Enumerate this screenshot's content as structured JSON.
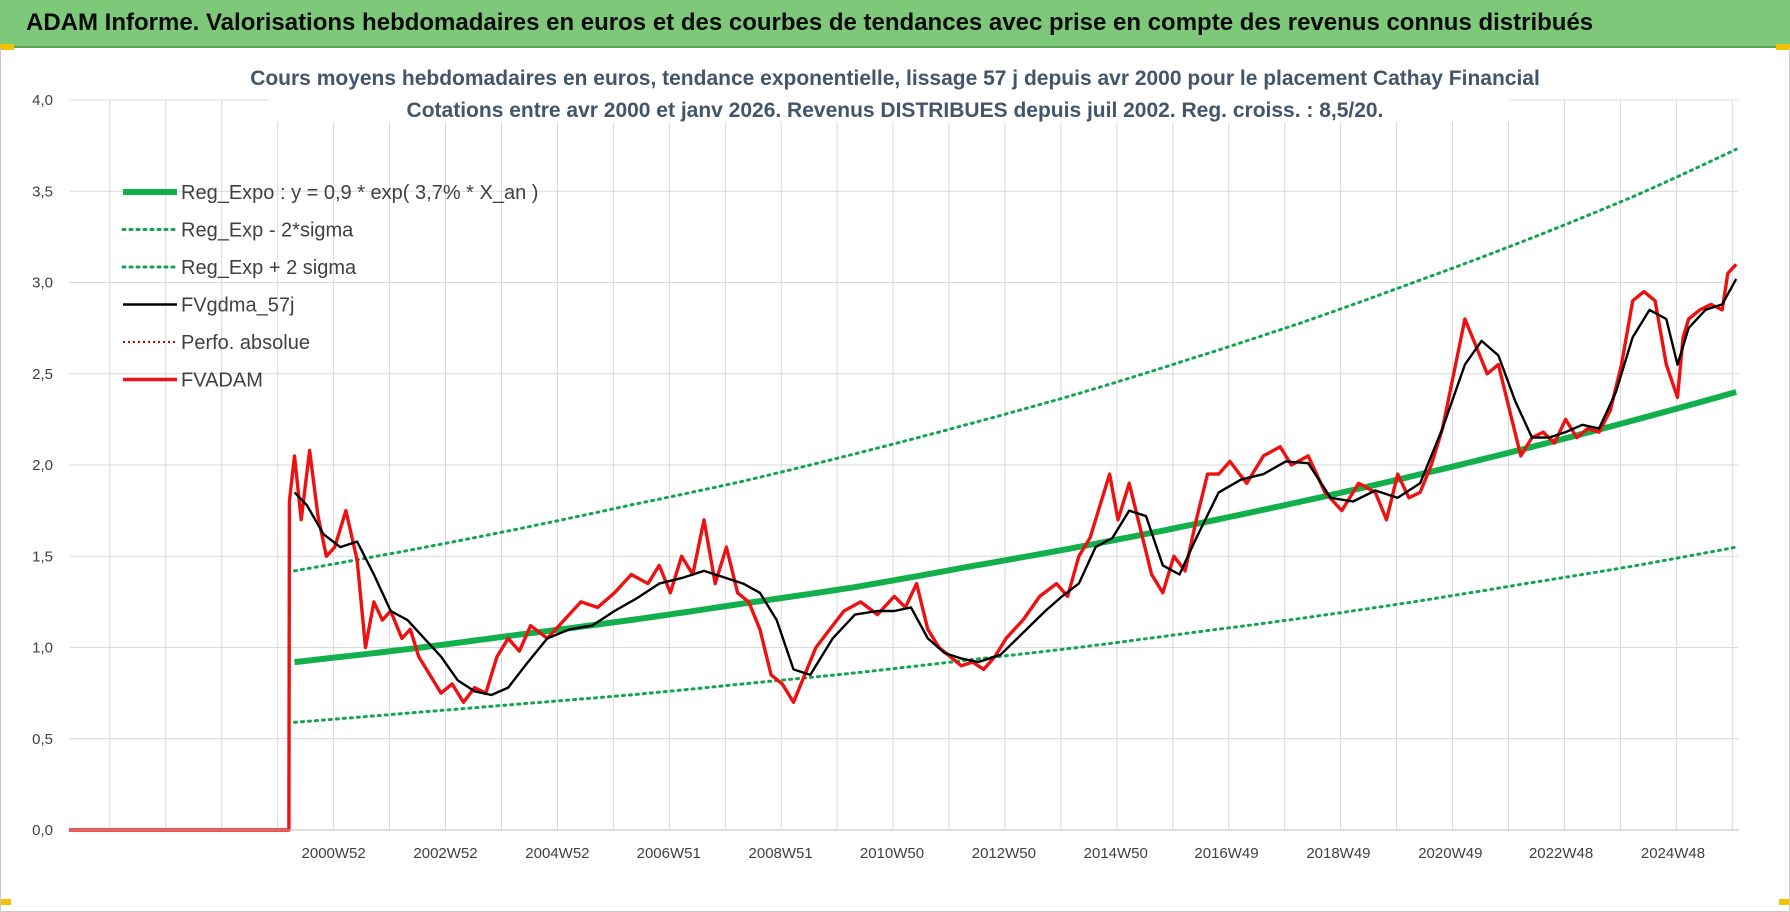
{
  "banner": {
    "title": "ADAM Informe. Valorisations hebdomadaires en euros et des courbes de tendances avec prise en compte des revenus connus distribués"
  },
  "colors": {
    "banner_bg": "#7ec87a",
    "trend_green": "#12b04c",
    "band_green": "#12a550",
    "smoothed_black": "#000000",
    "price_red": "#ee1111",
    "perf_red": "#cc0000",
    "grid": "#d9d9d9"
  },
  "chart_data": {
    "type": "line",
    "title": [
      "Cours moyens hebdomadaires en euros, tendance exponentielle, lissage 57 j depuis avr 2000 pour le placement Cathay Financial",
      "Cotations entre avr 2000 et janv 2026.  Revenus DISTRIBUES depuis juil 2002.  Reg. croiss. : 8,5/20."
    ],
    "xlabel": "",
    "ylabel": "",
    "ylim": [
      0,
      4
    ],
    "y_ticks": [
      "0,0",
      "0,5",
      "1,0",
      "1,5",
      "2,0",
      "2,5",
      "3,0",
      "3,5",
      "4,0"
    ],
    "x_range": [
      1996.25,
      2026.1
    ],
    "x_tick_labels": [
      {
        "x": 2000.98,
        "label": "2000W52"
      },
      {
        "x": 2002.98,
        "label": "2002W52"
      },
      {
        "x": 2004.98,
        "label": "2004W52"
      },
      {
        "x": 2006.97,
        "label": "2006W51"
      },
      {
        "x": 2008.97,
        "label": "2008W51"
      },
      {
        "x": 2010.96,
        "label": "2010W50"
      },
      {
        "x": 2012.96,
        "label": "2012W50"
      },
      {
        "x": 2014.96,
        "label": "2014W50"
      },
      {
        "x": 2016.94,
        "label": "2016W49"
      },
      {
        "x": 2018.94,
        "label": "2018W49"
      },
      {
        "x": 2020.94,
        "label": "2020W49"
      },
      {
        "x": 2022.92,
        "label": "2022W48"
      },
      {
        "x": 2024.92,
        "label": "2024W48"
      }
    ],
    "grid": true,
    "legend_position": "top-left",
    "series": [
      {
        "name": "Reg_Expo : y = 0,9 * exp( 3,7% *  X_an )",
        "style": "solid-thick-green",
        "x": [
          2000.28,
          2002.28,
          2004.28,
          2006.28,
          2008.28,
          2010.28,
          2012.28,
          2014.28,
          2016.28,
          2018.28,
          2020.28,
          2022.28,
          2024.28,
          2026.05
        ],
        "y": [
          0.92,
          0.99,
          1.07,
          1.15,
          1.24,
          1.33,
          1.44,
          1.55,
          1.67,
          1.8,
          1.94,
          2.09,
          2.25,
          2.4
        ]
      },
      {
        "name": "Reg_Exp - 2*sigma",
        "style": "dotted-green",
        "x": [
          2000.28,
          2002.28,
          2004.28,
          2006.28,
          2008.28,
          2010.28,
          2012.28,
          2014.28,
          2016.28,
          2018.28,
          2020.28,
          2022.28,
          2024.28,
          2026.05
        ],
        "y": [
          0.59,
          0.64,
          0.69,
          0.74,
          0.8,
          0.86,
          0.93,
          1.0,
          1.08,
          1.16,
          1.25,
          1.35,
          1.45,
          1.55
        ]
      },
      {
        "name": "Reg_Exp + 2 sigma",
        "style": "dotted-green",
        "x": [
          2000.28,
          2002.28,
          2004.28,
          2006.28,
          2008.28,
          2010.28,
          2012.28,
          2014.28,
          2016.28,
          2018.28,
          2020.28,
          2022.28,
          2024.28,
          2026.05
        ],
        "y": [
          1.42,
          1.53,
          1.65,
          1.78,
          1.91,
          2.06,
          2.22,
          2.39,
          2.58,
          2.78,
          3.0,
          3.23,
          3.48,
          3.73
        ]
      },
      {
        "name": "FVgdma_57j",
        "style": "solid-black",
        "x": [
          2000.28,
          2000.5,
          2000.8,
          2001.1,
          2001.4,
          2001.7,
          2002.0,
          2002.3,
          2002.6,
          2002.9,
          2003.2,
          2003.5,
          2003.8,
          2004.1,
          2004.4,
          2004.8,
          2005.2,
          2005.6,
          2006.0,
          2006.4,
          2006.8,
          2007.2,
          2007.6,
          2008.0,
          2008.3,
          2008.6,
          2008.9,
          2009.2,
          2009.5,
          2009.9,
          2010.3,
          2010.7,
          2011.0,
          2011.3,
          2011.6,
          2011.9,
          2012.2,
          2012.5,
          2012.9,
          2013.3,
          2013.7,
          2014.0,
          2014.3,
          2014.6,
          2014.9,
          2015.2,
          2015.5,
          2015.8,
          2016.1,
          2016.4,
          2016.8,
          2017.2,
          2017.6,
          2018.0,
          2018.4,
          2018.8,
          2019.2,
          2019.6,
          2020.0,
          2020.4,
          2020.8,
          2021.2,
          2021.5,
          2021.8,
          2022.1,
          2022.4,
          2022.7,
          2023.0,
          2023.3,
          2023.6,
          2023.9,
          2024.2,
          2024.5,
          2024.8,
          2025.0,
          2025.2,
          2025.5,
          2025.8,
          2026.05
        ],
        "y": [
          1.85,
          1.78,
          1.62,
          1.55,
          1.58,
          1.4,
          1.2,
          1.15,
          1.05,
          0.95,
          0.82,
          0.76,
          0.74,
          0.78,
          0.9,
          1.05,
          1.1,
          1.12,
          1.2,
          1.27,
          1.35,
          1.38,
          1.42,
          1.38,
          1.35,
          1.3,
          1.15,
          0.88,
          0.85,
          1.05,
          1.18,
          1.2,
          1.2,
          1.22,
          1.05,
          0.97,
          0.94,
          0.92,
          0.96,
          1.08,
          1.2,
          1.28,
          1.35,
          1.55,
          1.6,
          1.75,
          1.72,
          1.45,
          1.4,
          1.6,
          1.85,
          1.92,
          1.95,
          2.02,
          2.01,
          1.82,
          1.8,
          1.86,
          1.82,
          1.9,
          2.2,
          2.55,
          2.68,
          2.6,
          2.35,
          2.15,
          2.15,
          2.18,
          2.22,
          2.2,
          2.4,
          2.7,
          2.85,
          2.8,
          2.55,
          2.75,
          2.85,
          2.88,
          3.02
        ]
      },
      {
        "name": "Perfo. absolue",
        "style": "dotted-red",
        "x": [],
        "y": []
      },
      {
        "name": "FVADAM",
        "style": "solid-thick-red",
        "x": [
          1996.25,
          2000.18,
          2000.19,
          2000.28,
          2000.4,
          2000.55,
          2000.7,
          2000.85,
          2001.0,
          2001.2,
          2001.4,
          2001.55,
          2001.7,
          2001.85,
          2002.0,
          2002.2,
          2002.35,
          2002.5,
          2002.7,
          2002.9,
          2003.1,
          2003.3,
          2003.5,
          2003.7,
          2003.9,
          2004.1,
          2004.3,
          2004.5,
          2004.8,
          2005.1,
          2005.4,
          2005.7,
          2006.0,
          2006.3,
          2006.6,
          2006.8,
          2007.0,
          2007.2,
          2007.4,
          2007.6,
          2007.8,
          2008.0,
          2008.2,
          2008.4,
          2008.6,
          2008.8,
          2009.0,
          2009.2,
          2009.4,
          2009.6,
          2009.8,
          2010.1,
          2010.4,
          2010.7,
          2011.0,
          2011.2,
          2011.4,
          2011.6,
          2011.8,
          2012.0,
          2012.2,
          2012.4,
          2012.6,
          2012.8,
          2013.0,
          2013.3,
          2013.6,
          2013.9,
          2014.1,
          2014.3,
          2014.5,
          2014.7,
          2014.85,
          2015.0,
          2015.2,
          2015.4,
          2015.6,
          2015.8,
          2016.0,
          2016.2,
          2016.4,
          2016.6,
          2016.8,
          2017.0,
          2017.3,
          2017.6,
          2017.9,
          2018.1,
          2018.4,
          2018.7,
          2019.0,
          2019.3,
          2019.6,
          2019.8,
          2020.0,
          2020.2,
          2020.4,
          2020.6,
          2020.8,
          2021.0,
          2021.2,
          2021.4,
          2021.6,
          2021.8,
          2022.0,
          2022.2,
          2022.4,
          2022.6,
          2022.8,
          2023.0,
          2023.2,
          2023.4,
          2023.6,
          2023.8,
          2024.0,
          2024.2,
          2024.4,
          2024.6,
          2024.8,
          2025.0,
          2025.1,
          2025.2,
          2025.4,
          2025.6,
          2025.8,
          2025.9,
          2026.05
        ],
        "y": [
          0.0,
          0.0,
          1.8,
          2.05,
          1.7,
          2.08,
          1.72,
          1.5,
          1.55,
          1.75,
          1.48,
          1.0,
          1.25,
          1.15,
          1.2,
          1.05,
          1.1,
          0.95,
          0.85,
          0.75,
          0.8,
          0.7,
          0.78,
          0.75,
          0.95,
          1.05,
          0.98,
          1.12,
          1.05,
          1.15,
          1.25,
          1.22,
          1.3,
          1.4,
          1.35,
          1.45,
          1.3,
          1.5,
          1.4,
          1.7,
          1.35,
          1.55,
          1.3,
          1.25,
          1.1,
          0.85,
          0.8,
          0.7,
          0.85,
          1.0,
          1.08,
          1.2,
          1.25,
          1.18,
          1.28,
          1.22,
          1.35,
          1.1,
          1.0,
          0.95,
          0.9,
          0.92,
          0.88,
          0.95,
          1.05,
          1.15,
          1.28,
          1.35,
          1.28,
          1.5,
          1.6,
          1.8,
          1.95,
          1.7,
          1.9,
          1.65,
          1.4,
          1.3,
          1.5,
          1.42,
          1.7,
          1.95,
          1.95,
          2.02,
          1.9,
          2.05,
          2.1,
          2.0,
          2.05,
          1.85,
          1.75,
          1.9,
          1.85,
          1.7,
          1.95,
          1.82,
          1.85,
          2.0,
          2.2,
          2.5,
          2.8,
          2.65,
          2.5,
          2.55,
          2.3,
          2.05,
          2.15,
          2.18,
          2.12,
          2.25,
          2.15,
          2.2,
          2.18,
          2.3,
          2.55,
          2.9,
          2.95,
          2.9,
          2.55,
          2.37,
          2.7,
          2.8,
          2.85,
          2.88,
          2.85,
          3.05,
          3.1
        ]
      }
    ]
  }
}
